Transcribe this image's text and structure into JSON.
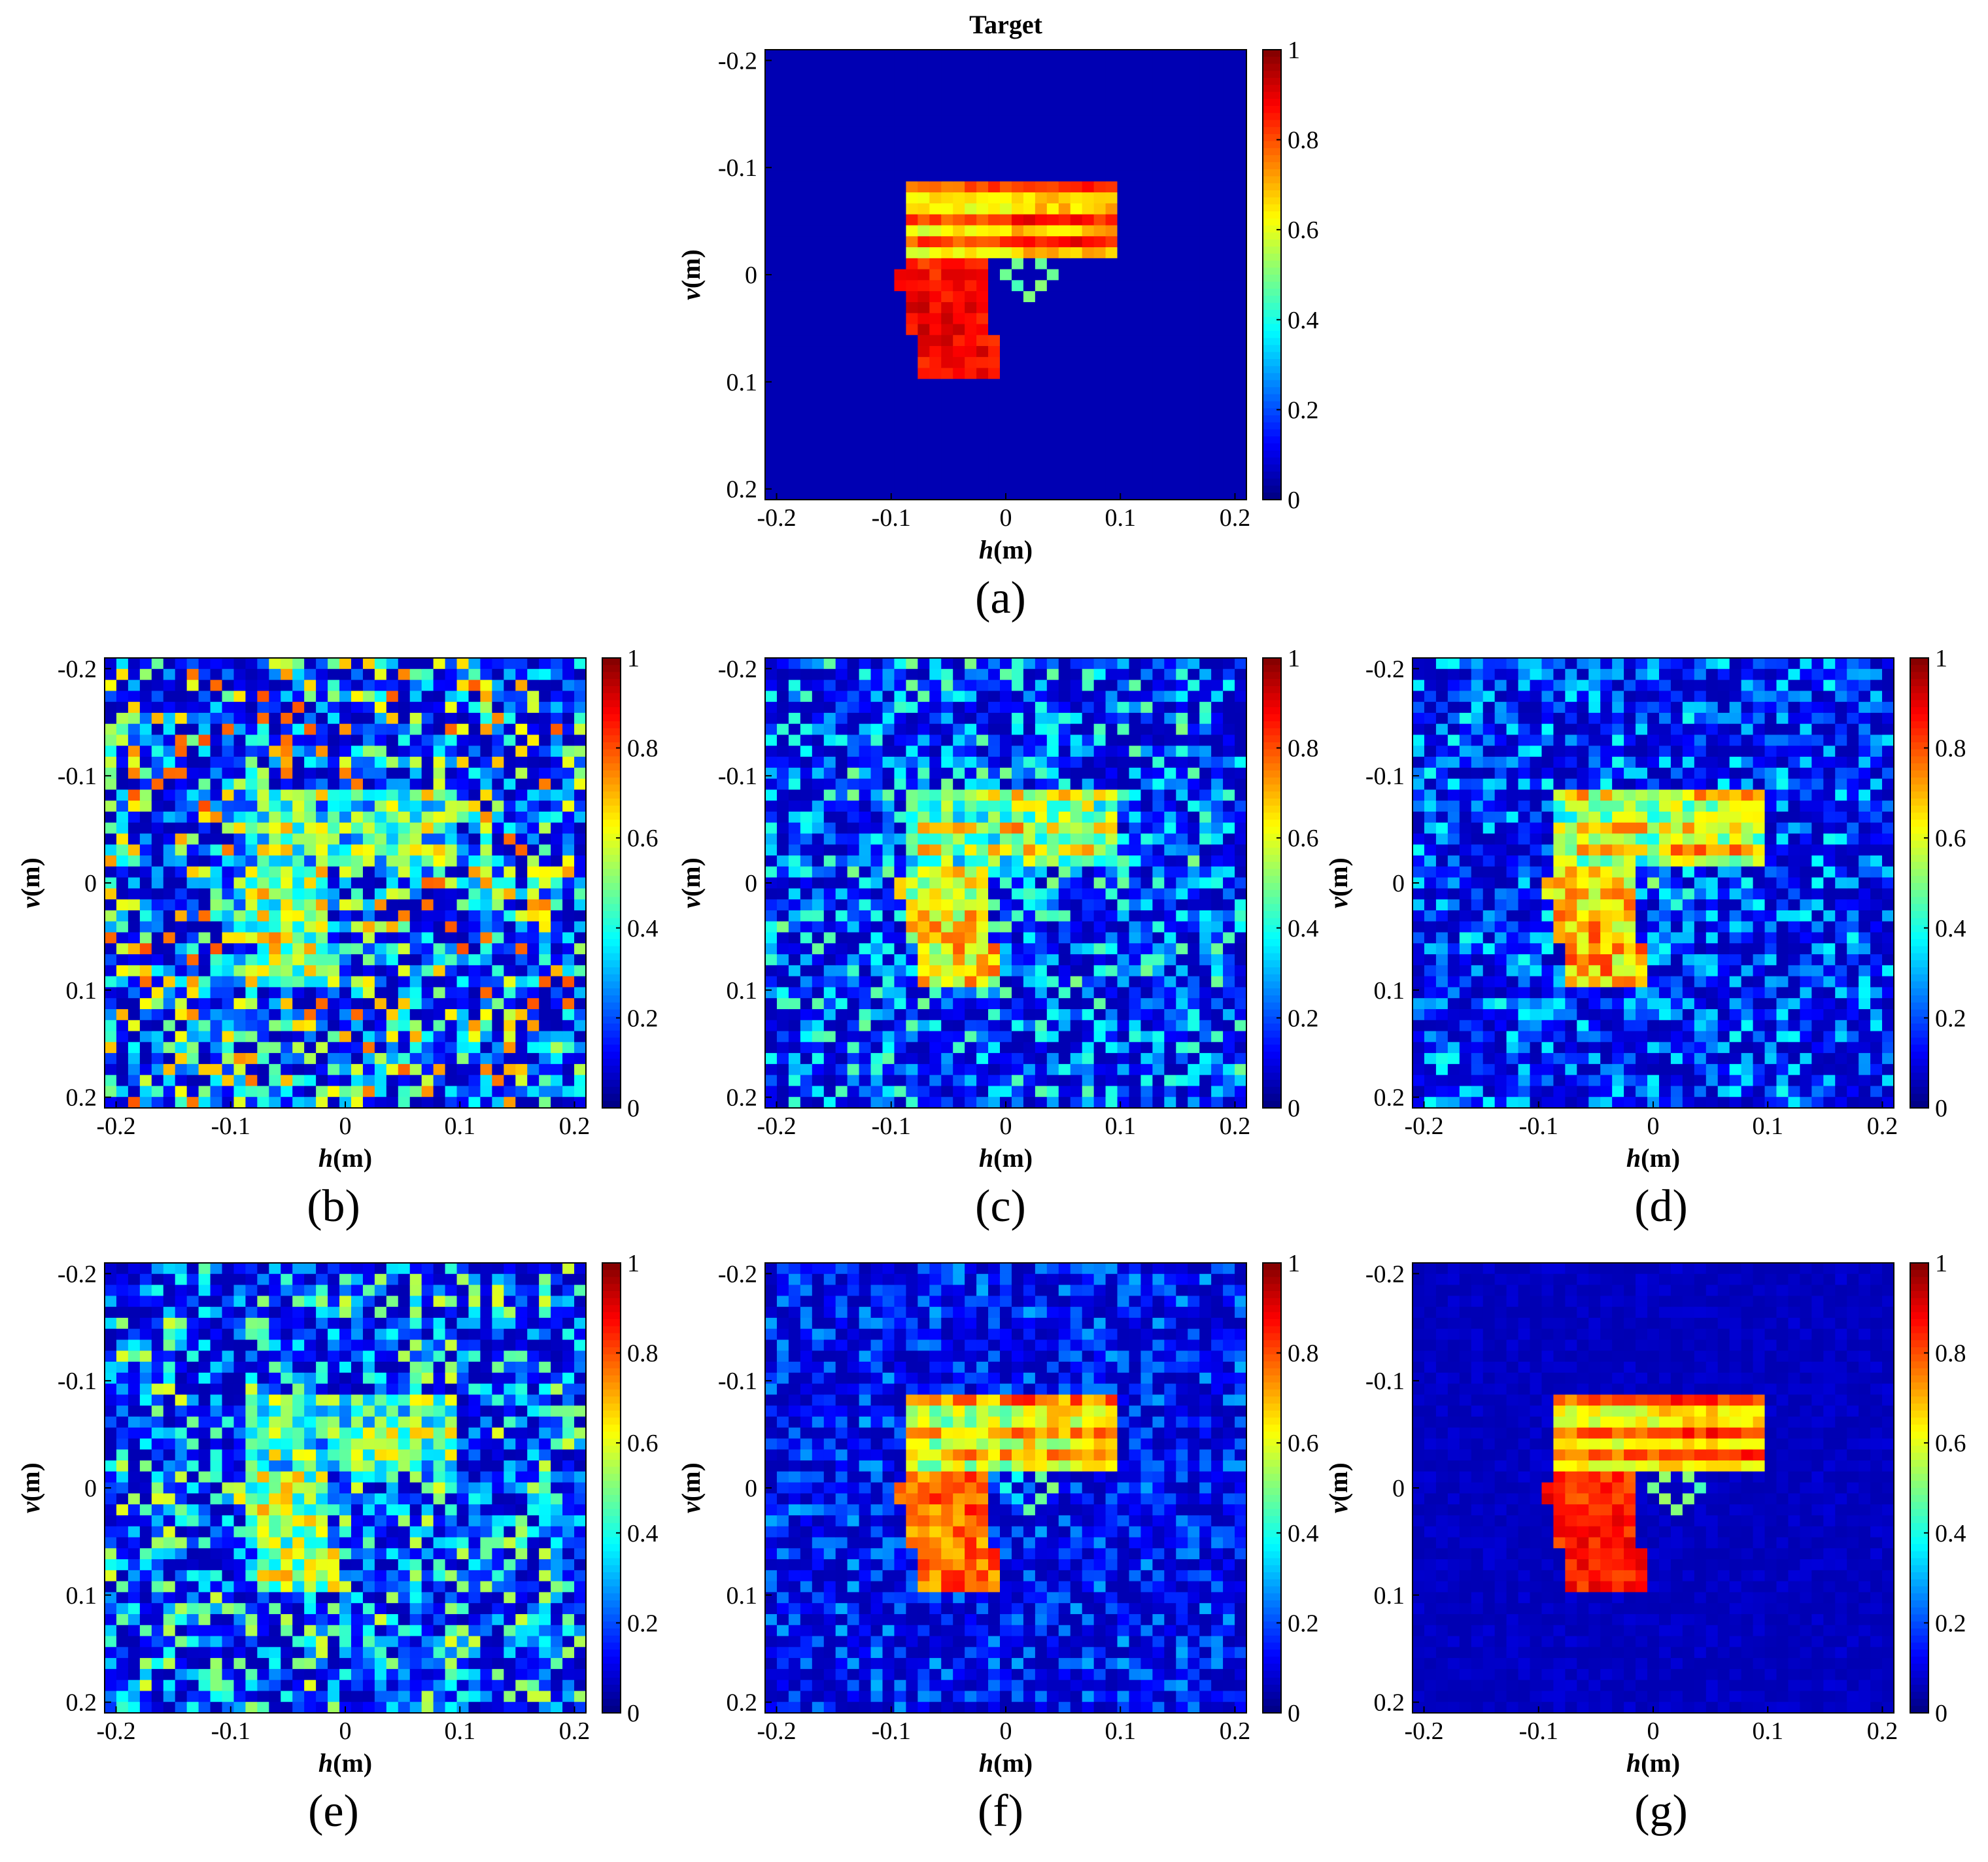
{
  "chart_data": [
    {
      "type": "heatmap",
      "id": "a",
      "caption": "(a)",
      "title": "Target",
      "xlabel": "h(m)",
      "ylabel": "v(m)",
      "xlim": [
        -0.21,
        0.21
      ],
      "ylim": [
        -0.21,
        0.21
      ],
      "xticks": [
        "-0.2",
        "-0.1",
        "0",
        "0.1",
        "0.2"
      ],
      "yticks": [
        "-0.2",
        "-0.1",
        "0",
        "0.1",
        "0.2"
      ],
      "colorbar": {
        "min": 0,
        "max": 1,
        "ticks": [
          "0",
          "0.2",
          "0.4",
          "0.6",
          "0.8",
          "1"
        ]
      },
      "grid": 41,
      "noise": 0.0,
      "object_scale": 1.0,
      "object_noise": 0.12,
      "seed": 11
    },
    {
      "type": "heatmap",
      "id": "b",
      "caption": "(b)",
      "title": "",
      "xlabel": "h(m)",
      "ylabel": "v(m)",
      "xlim": [
        -0.21,
        0.21
      ],
      "ylim": [
        -0.21,
        0.21
      ],
      "xticks": [
        "-0.2",
        "-0.1",
        "0",
        "0.1",
        "0.2"
      ],
      "yticks": [
        "-0.2",
        "-0.1",
        "0",
        "0.1",
        "0.2"
      ],
      "colorbar": {
        "min": 0,
        "max": 1,
        "ticks": [
          "0",
          "0.2",
          "0.4",
          "0.6",
          "0.8",
          "1"
        ]
      },
      "grid": 41,
      "noise": 0.75,
      "object_scale": 0.6,
      "object_noise": 0.45,
      "seed": 22
    },
    {
      "type": "heatmap",
      "id": "c",
      "caption": "(c)",
      "title": "",
      "xlabel": "h(m)",
      "ylabel": "v(m)",
      "xlim": [
        -0.21,
        0.21
      ],
      "ylim": [
        -0.21,
        0.21
      ],
      "xticks": [
        "-0.2",
        "-0.1",
        "0",
        "0.1",
        "0.2"
      ],
      "yticks": [
        "-0.2",
        "-0.1",
        "0",
        "0.1",
        "0.2"
      ],
      "colorbar": {
        "min": 0,
        "max": 1,
        "ticks": [
          "0",
          "0.2",
          "0.4",
          "0.6",
          "0.8",
          "1"
        ]
      },
      "grid": 41,
      "noise": 0.45,
      "object_scale": 0.72,
      "object_noise": 0.35,
      "seed": 33
    },
    {
      "type": "heatmap",
      "id": "d",
      "caption": "(d)",
      "title": "",
      "xlabel": "h(m)",
      "ylabel": "v(m)",
      "xlim": [
        -0.21,
        0.21
      ],
      "ylim": [
        -0.21,
        0.21
      ],
      "xticks": [
        "-0.2",
        "-0.1",
        "0",
        "0.1",
        "0.2"
      ],
      "yticks": [
        "-0.2",
        "-0.1",
        "0",
        "0.1",
        "0.2"
      ],
      "colorbar": {
        "min": 0,
        "max": 1,
        "ticks": [
          "0",
          "0.2",
          "0.4",
          "0.6",
          "0.8",
          "1"
        ]
      },
      "grid": 41,
      "noise": 0.35,
      "object_scale": 0.78,
      "object_noise": 0.3,
      "seed": 44
    },
    {
      "type": "heatmap",
      "id": "e",
      "caption": "(e)",
      "title": "",
      "xlabel": "h(m)",
      "ylabel": "v(m)",
      "xlim": [
        -0.21,
        0.21
      ],
      "ylim": [
        -0.21,
        0.21
      ],
      "xticks": [
        "-0.2",
        "-0.1",
        "0",
        "0.1",
        "0.2"
      ],
      "yticks": [
        "-0.2",
        "-0.1",
        "0",
        "0.1",
        "0.2"
      ],
      "colorbar": {
        "min": 0,
        "max": 1,
        "ticks": [
          "0",
          "0.2",
          "0.4",
          "0.6",
          "0.8",
          "1"
        ]
      },
      "grid": 41,
      "noise": 0.55,
      "object_scale": 0.6,
      "object_noise": 0.4,
      "seed": 55
    },
    {
      "type": "heatmap",
      "id": "f",
      "caption": "(f)",
      "title": "",
      "xlabel": "h(m)",
      "ylabel": "v(m)",
      "xlim": [
        -0.21,
        0.21
      ],
      "ylim": [
        -0.21,
        0.21
      ],
      "xticks": [
        "-0.2",
        "-0.1",
        "0",
        "0.1",
        "0.2"
      ],
      "yticks": [
        "-0.2",
        "-0.1",
        "0",
        "0.1",
        "0.2"
      ],
      "colorbar": {
        "min": 0,
        "max": 1,
        "ticks": [
          "0",
          "0.2",
          "0.4",
          "0.6",
          "0.8",
          "1"
        ]
      },
      "grid": 41,
      "noise": 0.25,
      "object_scale": 0.88,
      "object_noise": 0.22,
      "seed": 66
    },
    {
      "type": "heatmap",
      "id": "g",
      "caption": "(g)",
      "title": "",
      "xlabel": "h(m)",
      "ylabel": "v(m)",
      "xlim": [
        -0.21,
        0.21
      ],
      "ylim": [
        -0.21,
        0.21
      ],
      "xticks": [
        "-0.2",
        "-0.1",
        "0",
        "0.1",
        "0.2"
      ],
      "yticks": [
        "-0.2",
        "-0.1",
        "0",
        "0.1",
        "0.2"
      ],
      "colorbar": {
        "min": 0,
        "max": 1,
        "ticks": [
          "0",
          "0.2",
          "0.4",
          "0.6",
          "0.8",
          "1"
        ]
      },
      "grid": 41,
      "noise": 0.04,
      "object_scale": 0.97,
      "object_noise": 0.12,
      "seed": 77
    }
  ]
}
